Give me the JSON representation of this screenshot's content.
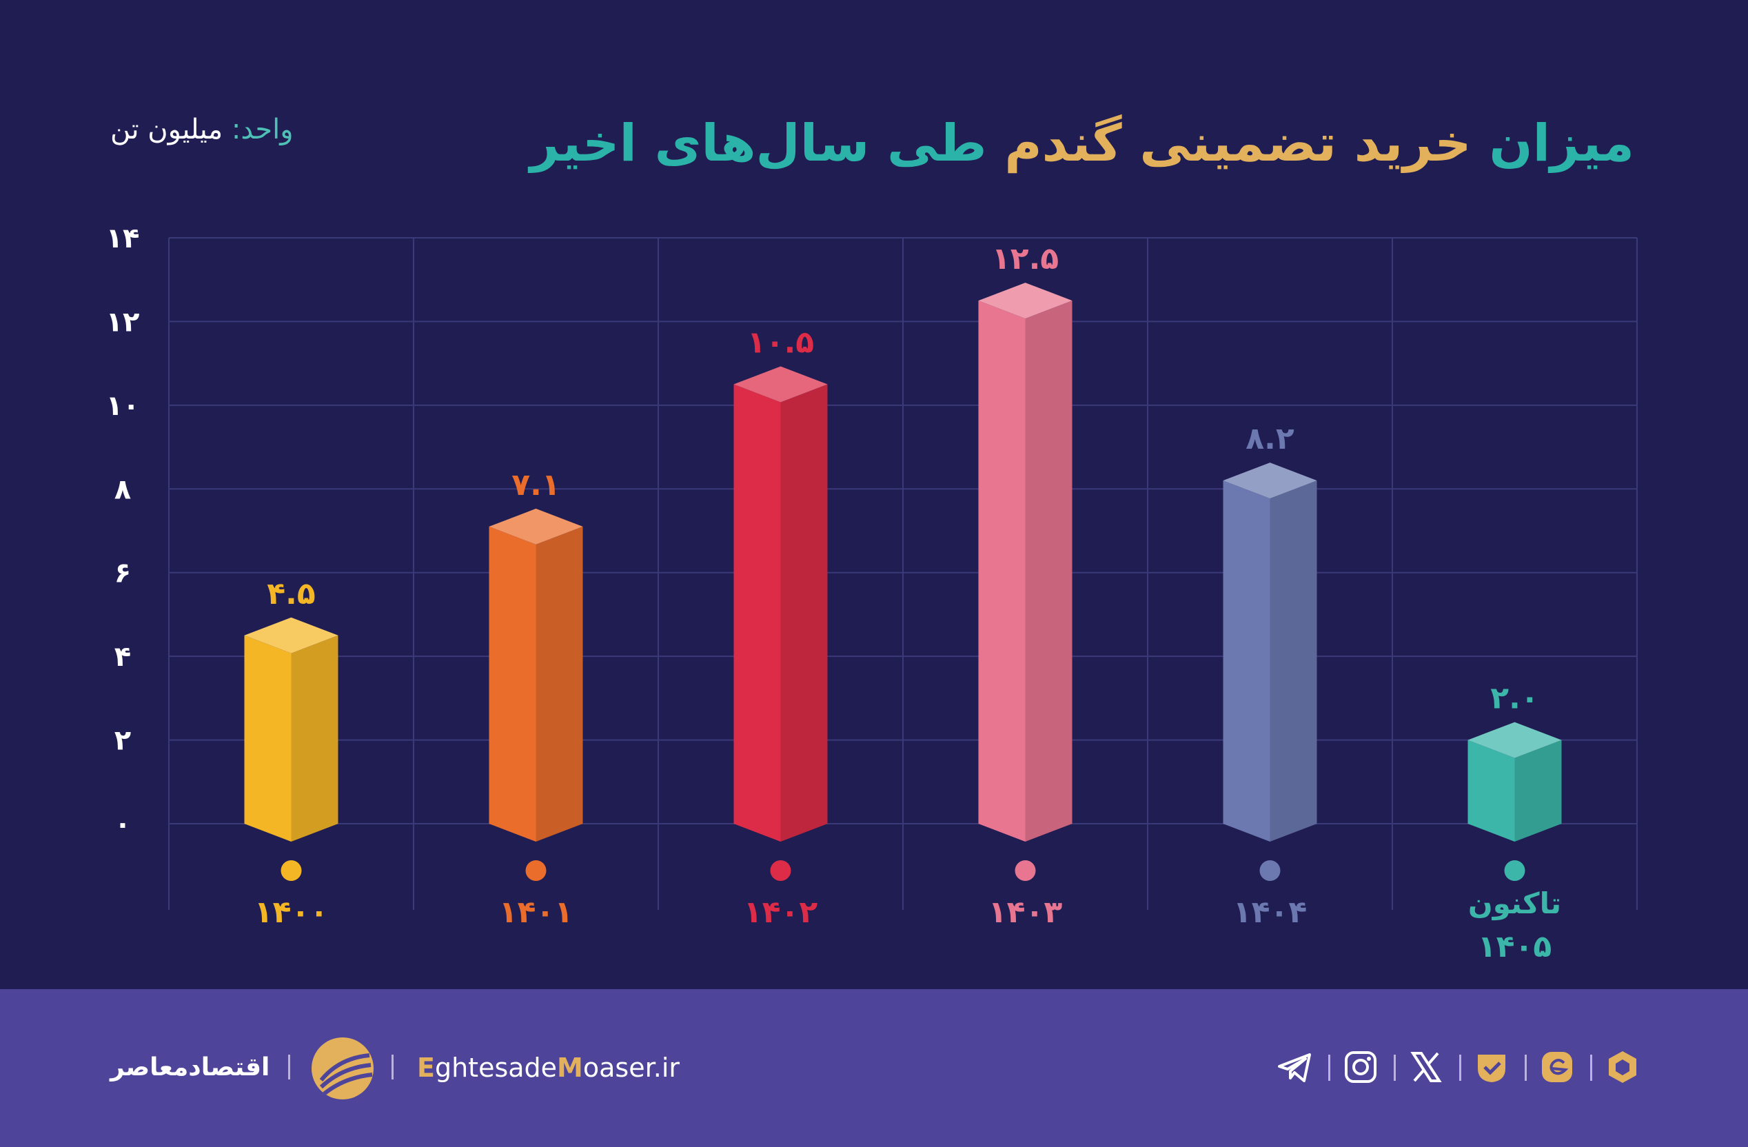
{
  "title": {
    "part1": "میزان",
    "part2": "خرید تضمینی گندم",
    "part3": "طی سال‌های اخیر"
  },
  "unit": {
    "label": "واحد:",
    "value": "میلیون تن"
  },
  "chart_data": {
    "type": "bar",
    "categories": [
      "۱۴۰۰",
      "۱۴۰۱",
      "۱۴۰۲",
      "۱۴۰۳",
      "۱۴۰۴",
      "۱۴۰۵"
    ],
    "category_prefix": [
      "",
      "",
      "",
      "",
      "",
      "تاکنون"
    ],
    "values": [
      4.5,
      7.1,
      10.5,
      12.5,
      8.2,
      2.0
    ],
    "value_labels": [
      "۴.۵",
      "۷.۱",
      "۱۰.۵",
      "۱۲.۵",
      "۸.۲",
      "۲.۰"
    ],
    "colors": [
      "#f4b625",
      "#ea6d2c",
      "#dc2c47",
      "#e97690",
      "#6b79b0",
      "#3db6aa"
    ],
    "yticks": [
      0,
      2,
      4,
      6,
      8,
      10,
      12,
      14
    ],
    "ytick_labels": [
      "۰",
      "۲",
      "۴",
      "۶",
      "۸",
      "۱۰",
      "۱۲",
      "۱۴"
    ],
    "ylim": [
      0,
      14
    ],
    "grid": true
  },
  "footer": {
    "brand_fa": "اقتصادمعاصر",
    "site_prefix": "E",
    "site_mid1": "ghtesade",
    "site_m": "M",
    "site_mid2": "oaser",
    "site_tld": ".ir",
    "icons": [
      "telegram-icon",
      "instagram-icon",
      "x-icon",
      "bale-icon",
      "eitaa-icon",
      "rubika-icon"
    ]
  }
}
